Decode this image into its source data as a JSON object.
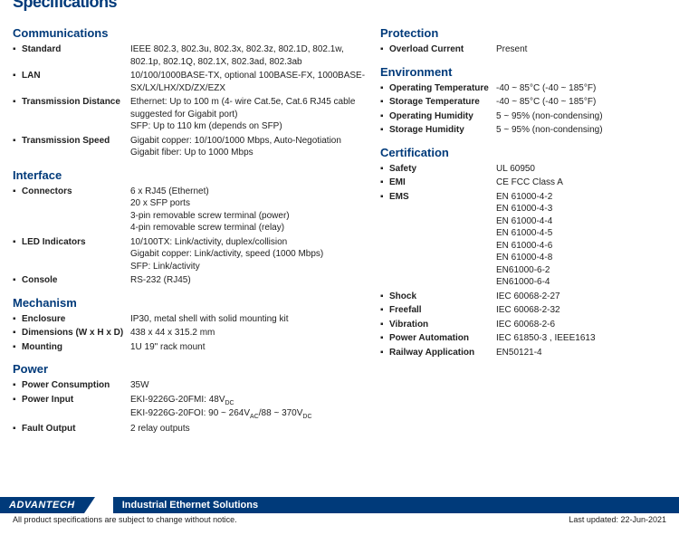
{
  "cutoffTitle": "Specifications",
  "leftSections": [
    {
      "title": "Communications",
      "rows": [
        {
          "label": "Standard",
          "values": [
            "IEEE 802.3, 802.3u, 802.3x, 802.3z, 802.1D, 802.1w, 802.1p, 802.1Q, 802.1X, 802.3ad, 802.3ab"
          ]
        },
        {
          "label": "LAN",
          "values": [
            "10/100/1000BASE-TX, optional 100BASE-FX, 1000BASE-SX/LX/LHX/XD/ZX/EZX"
          ]
        },
        {
          "label": "Transmission Distance",
          "values": [
            "Ethernet: Up to 100 m (4- wire Cat.5e, Cat.6 RJ45 cable suggested for Gigabit port)",
            "SFP: Up to 110 km (depends on SFP)"
          ]
        },
        {
          "label": "Transmission Speed",
          "values": [
            "Gigabit copper: 10/100/1000 Mbps, Auto-Negotiation",
            "Gigabit fiber: Up to 1000 Mbps"
          ]
        }
      ]
    },
    {
      "title": "Interface",
      "rows": [
        {
          "label": "Connectors",
          "values": [
            "6 x RJ45 (Ethernet)",
            "20 x SFP ports",
            "3-pin removable screw terminal (power)",
            "4-pin removable screw terminal (relay)"
          ]
        },
        {
          "label": "LED Indicators",
          "values": [
            "10/100TX: Link/activity, duplex/collision",
            "Gigabit copper: Link/activity, speed (1000 Mbps)",
            "SFP: Link/activity"
          ]
        },
        {
          "label": "Console",
          "values": [
            "RS-232 (RJ45)"
          ]
        }
      ]
    },
    {
      "title": "Mechanism",
      "rows": [
        {
          "label": "Enclosure",
          "values": [
            "IP30, metal shell with solid mounting kit"
          ]
        },
        {
          "label": "Dimensions (W x H x D)",
          "values": [
            "438 x 44 x 315.2 mm"
          ]
        },
        {
          "label": "Mounting",
          "values": [
            "1U 19\" rack mount"
          ]
        }
      ]
    },
    {
      "title": "Power",
      "rows": [
        {
          "label": "Power Consumption",
          "values": [
            "35W"
          ]
        },
        {
          "label": "Power Input",
          "values": [
            "EKI-9226G-20FMI: 48V",
            "EKI-9226G-20FOI: 90 ~ 264V__AC/88 ~ 370V__DC"
          ],
          "sub": [
            "DC",
            null
          ]
        },
        {
          "label": "Fault Output",
          "values": [
            "2 relay outputs"
          ]
        }
      ]
    }
  ],
  "rightSections": [
    {
      "title": "Protection",
      "rows": [
        {
          "label": "Overload Current",
          "values": [
            "Present"
          ]
        }
      ]
    },
    {
      "title": "Environment",
      "rows": [
        {
          "label": "Operating Temperature",
          "values": [
            "-40 ~ 85°C (-40 ~ 185°F)"
          ]
        },
        {
          "label": "Storage Temperature",
          "values": [
            "-40 ~ 85°C (-40 ~ 185°F)"
          ]
        },
        {
          "label": "Operating Humidity",
          "values": [
            "5 ~ 95% (non-condensing)"
          ]
        },
        {
          "label": "Storage Humidity",
          "values": [
            "5 ~ 95% (non-condensing)"
          ]
        }
      ]
    },
    {
      "title": "Certification",
      "rows": [
        {
          "label": "Safety",
          "values": [
            "UL 60950"
          ]
        },
        {
          "label": "EMI",
          "values": [
            "CE FCC Class A"
          ]
        },
        {
          "label": "EMS",
          "values": [
            "EN 61000-4-2",
            "EN 61000-4-3",
            "EN 61000-4-4",
            "EN 61000-4-5",
            "EN 61000-4-6",
            "EN 61000-4-8",
            "EN61000-6-2",
            "EN61000-6-4"
          ]
        },
        {
          "label": "Shock",
          "values": [
            "IEC 60068-2-27"
          ]
        },
        {
          "label": "Freefall",
          "values": [
            "IEC 60068-2-32"
          ]
        },
        {
          "label": "Vibration",
          "values": [
            "IEC 60068-2-6"
          ]
        },
        {
          "label": "Power Automation",
          "values": [
            "IEC 61850-3 , IEEE1613"
          ]
        },
        {
          "label": "Railway Application",
          "values": [
            "EN50121-4"
          ]
        }
      ]
    }
  ],
  "footer": {
    "logo": "ADVANTECH",
    "band": "Industrial Ethernet Solutions",
    "disclaimer": "All product specifications are subject to change without notice.",
    "updated": "Last updated: 22-Jun-2021"
  }
}
